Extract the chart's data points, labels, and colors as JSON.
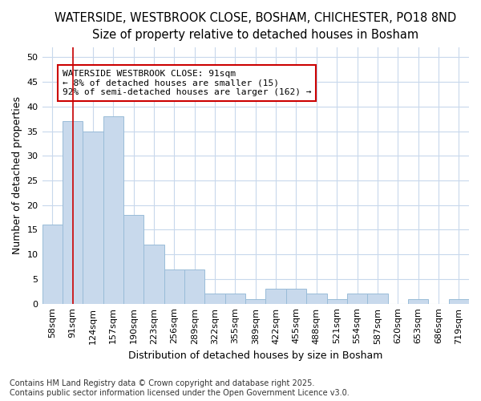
{
  "title_line1": "WATERSIDE, WESTBROOK CLOSE, BOSHAM, CHICHESTER, PO18 8ND",
  "title_line2": "Size of property relative to detached houses in Bosham",
  "xlabel": "Distribution of detached houses by size in Bosham",
  "ylabel": "Number of detached properties",
  "footnote": "Contains HM Land Registry data © Crown copyright and database right 2025.\nContains public sector information licensed under the Open Government Licence v3.0.",
  "categories": [
    "58sqm",
    "91sqm",
    "124sqm",
    "157sqm",
    "190sqm",
    "223sqm",
    "256sqm",
    "289sqm",
    "322sqm",
    "355sqm",
    "389sqm",
    "422sqm",
    "455sqm",
    "488sqm",
    "521sqm",
    "554sqm",
    "587sqm",
    "620sqm",
    "653sqm",
    "686sqm",
    "719sqm"
  ],
  "values": [
    16,
    37,
    35,
    38,
    18,
    12,
    7,
    7,
    2,
    2,
    1,
    3,
    3,
    2,
    1,
    2,
    2,
    0,
    1,
    0,
    1
  ],
  "bar_color": "#c8d9ec",
  "bar_edge_color": "#99bcd8",
  "highlight_bar_index": 1,
  "highlight_line_color": "#cc0000",
  "annotation_text": "WATERSIDE WESTBROOK CLOSE: 91sqm\n← 8% of detached houses are smaller (15)\n92% of semi-detached houses are larger (162) →",
  "annotation_box_color": "#ffffff",
  "annotation_box_edge": "#cc0000",
  "ylim": [
    0,
    52
  ],
  "yticks": [
    0,
    5,
    10,
    15,
    20,
    25,
    30,
    35,
    40,
    45,
    50
  ],
  "bg_color": "#ffffff",
  "plot_bg_color": "#ffffff",
  "grid_color": "#c8d8ec",
  "title1_fontsize": 10.5,
  "title2_fontsize": 9.5,
  "axis_label_fontsize": 9,
  "tick_fontsize": 8,
  "annotation_fontsize": 8,
  "footnote_fontsize": 7
}
